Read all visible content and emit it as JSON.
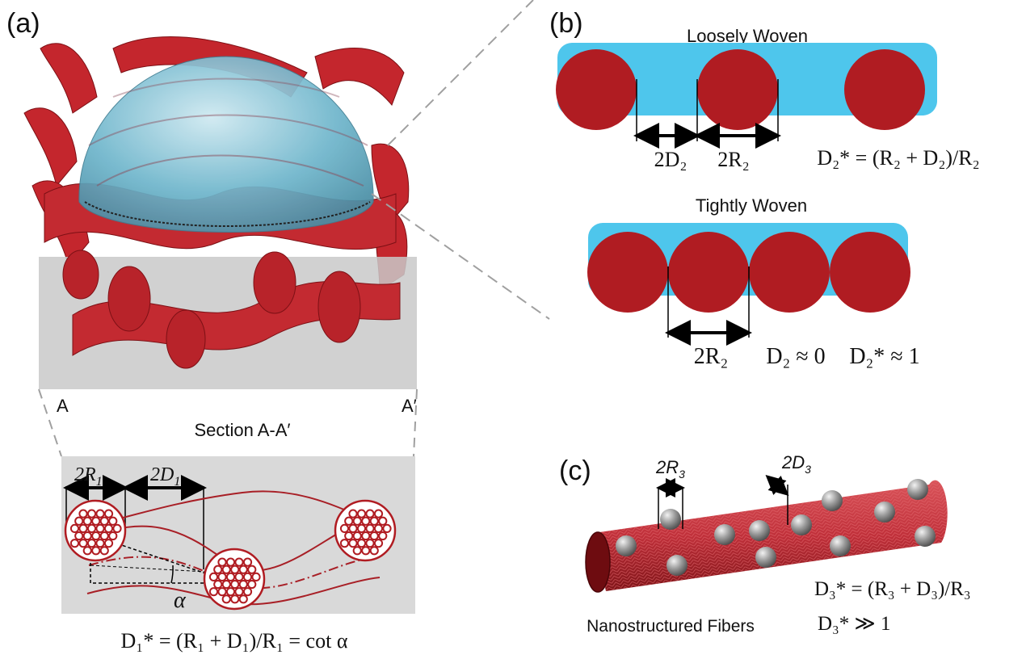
{
  "panel_a": {
    "label": "(a)",
    "section_left": "A",
    "section_right": "A′",
    "section_title": "Section A-A′",
    "dim_left": "2R",
    "dim_left_sub": "1",
    "dim_right": "2D",
    "dim_right_sub": "1",
    "angle": "α",
    "formula": "D₁* = (R₁ + D₁)/R₁ = cot α"
  },
  "panel_b": {
    "label": "(b)",
    "loose_title": "Loosely Woven",
    "loose_dim_left": "2D₂",
    "loose_dim_right": "2R₂",
    "loose_formula": "D₂* = (R₂ + D₂)/R₂",
    "tight_title": "Tightly Woven",
    "tight_dim": "2R₂",
    "tight_d": "D₂ ≈ 0",
    "tight_formula": "D₂* ≈ 1"
  },
  "panel_c": {
    "label": "(c)",
    "dim_r": "2R",
    "dim_r_sub": "3",
    "dim_d": "2D",
    "dim_d_sub": "3",
    "formula1": "D₃* = (R₃ + D₃)/R₃",
    "formula2": "D₃* ≫ 1",
    "caption": "Nanostructured Fibers"
  },
  "colors": {
    "fiber_red": "#b01c22",
    "matrix_blue": "#4ec6ec",
    "section_grey": "#d8d8d8",
    "bead_grey": "#8a8a8a"
  }
}
